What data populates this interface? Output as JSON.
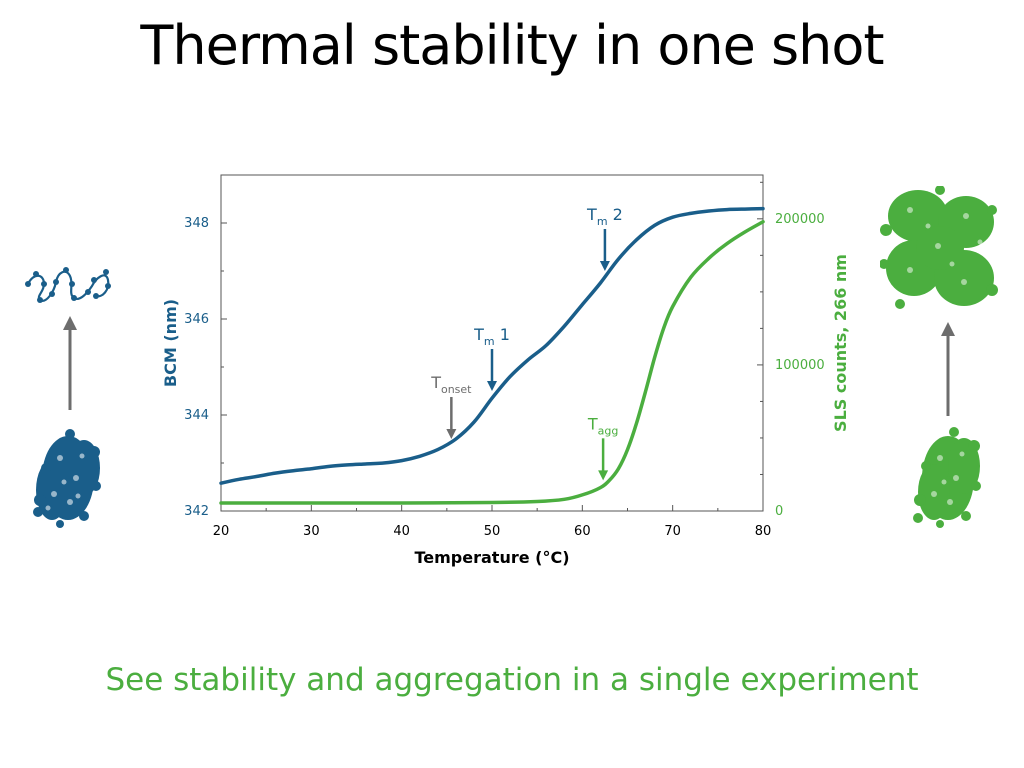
{
  "slide": {
    "title": "Thermal stability in one shot",
    "subtitle": "See stability and aggregation in a single experiment"
  },
  "colors": {
    "bcm": "#1a5e8a",
    "sls": "#4bae3f",
    "onset": "#6d6d6d",
    "subtitle": "#4bae3f",
    "axis": "#555555"
  },
  "icons": {
    "left_top": "unfolded-protein-chain-icon",
    "left_bottom": "folded-protein-icon",
    "left_arrow": "up-arrow-icon",
    "right_top": "aggregated-protein-icon",
    "right_bottom": "folded-protein-icon",
    "right_arrow": "up-arrow-icon"
  },
  "chart_data": {
    "type": "line",
    "xlabel": "Temperature (°C)",
    "ylabel": "BCM (nm)",
    "y2label": "SLS counts, 266 nm",
    "xlim": [
      20,
      80
    ],
    "ylim": [
      342,
      349
    ],
    "y2lim": [
      0,
      230000
    ],
    "xticks": [
      "20",
      "30",
      "40",
      "50",
      "60",
      "70",
      "80"
    ],
    "yticks": [
      "342",
      "344",
      "346",
      "348"
    ],
    "y2ticks": [
      "0",
      "100000",
      "200000"
    ],
    "grid": false,
    "series": [
      {
        "name": "BCM",
        "axis": "left",
        "x": [
          20,
          22,
          24,
          26,
          28,
          30,
          32,
          34,
          36,
          38,
          40,
          42,
          44,
          46,
          48,
          50,
          52,
          54,
          56,
          58,
          60,
          62,
          64,
          66,
          68,
          70,
          72,
          74,
          76,
          78,
          80
        ],
        "y": [
          342.58,
          342.66,
          342.72,
          342.79,
          342.84,
          342.88,
          342.93,
          342.96,
          342.98,
          343.0,
          343.05,
          343.14,
          343.28,
          343.5,
          343.85,
          344.35,
          344.8,
          345.15,
          345.45,
          345.85,
          346.3,
          346.75,
          347.25,
          347.65,
          347.95,
          348.12,
          348.2,
          348.25,
          348.28,
          348.29,
          348.3
        ]
      },
      {
        "name": "SLS",
        "axis": "right",
        "x": [
          20,
          30,
          40,
          50,
          55,
          58,
          60,
          62,
          63,
          64,
          65,
          66,
          67,
          68,
          69,
          70,
          72,
          74,
          76,
          78,
          80
        ],
        "y": [
          5500,
          5500,
          5500,
          5800,
          6500,
          8000,
          11000,
          16000,
          21000,
          29000,
          42000,
          60000,
          82000,
          105000,
          125000,
          140000,
          160000,
          173000,
          183000,
          191000,
          198000
        ]
      }
    ],
    "annotations": [
      {
        "id": "tonset",
        "label": "T",
        "sub": "onset",
        "x": 45.5,
        "y_tip": 343.5,
        "axis": "left",
        "color": "onset"
      },
      {
        "id": "tm1",
        "label": "T",
        "sub": "m",
        "suffix": " 1",
        "x": 50,
        "y_tip": 344.5,
        "axis": "left",
        "color": "bcm"
      },
      {
        "id": "tm2",
        "label": "T",
        "sub": "m",
        "suffix": " 2",
        "x": 62.5,
        "y_tip": 347.0,
        "axis": "left",
        "color": "bcm"
      },
      {
        "id": "tagg",
        "label": "T",
        "sub": "agg",
        "x": 62.3,
        "y_tip": 21000,
        "axis": "right",
        "color": "sls"
      }
    ]
  }
}
